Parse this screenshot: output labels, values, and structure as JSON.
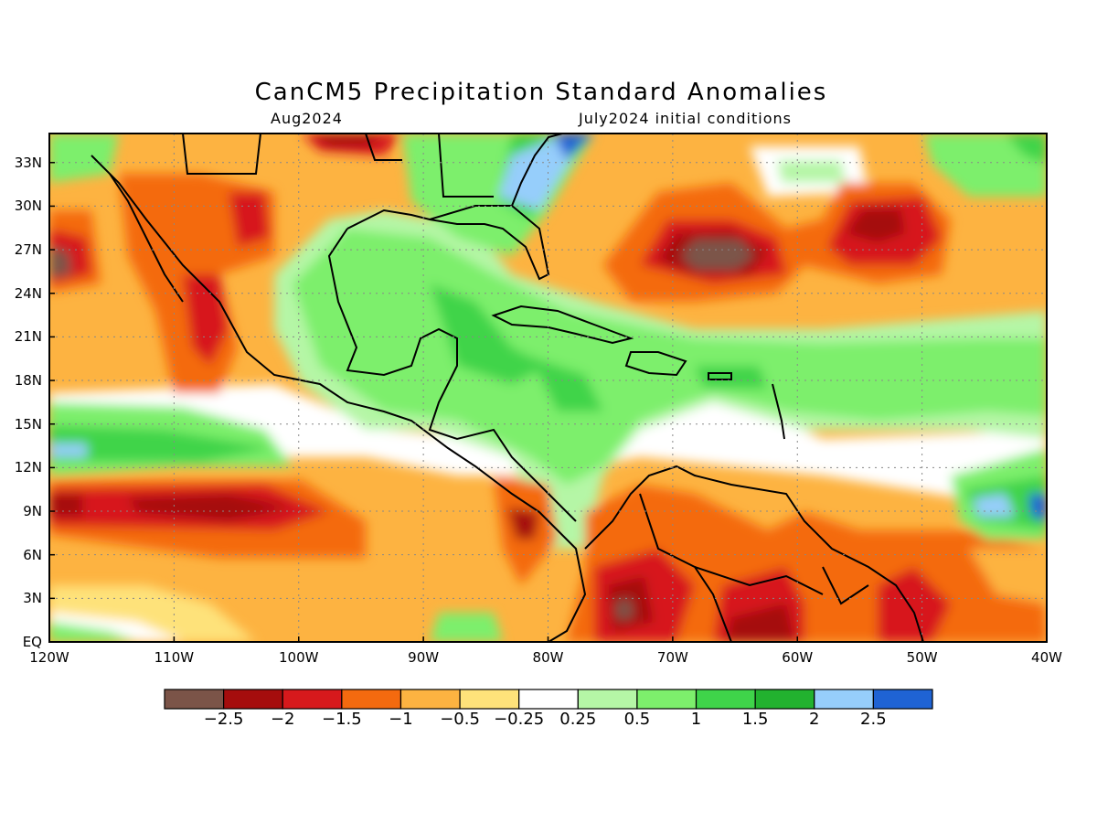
{
  "title": "CanCM5 Precipitation Standard Anomalies",
  "subtitle_left": "Aug2024",
  "subtitle_right": "July2024 initial conditions",
  "axes": {
    "lat_ticks": [
      "33N",
      "30N",
      "27N",
      "24N",
      "21N",
      "18N",
      "15N",
      "12N",
      "9N",
      "6N",
      "3N",
      "EQ"
    ],
    "lon_ticks": [
      "120W",
      "110W",
      "100W",
      "90W",
      "80W",
      "70W",
      "60W",
      "50W",
      "40W"
    ],
    "lat_range": [
      0,
      35
    ],
    "lon_range": [
      -120,
      -40
    ],
    "grid": "dotted"
  },
  "colorbar": {
    "labels": [
      "-2.5",
      "-2",
      "-1.5",
      "-1",
      "-0.5",
      "-0.25",
      "0.25",
      "0.5",
      "1",
      "1.5",
      "2",
      "2.5"
    ],
    "colors": [
      "#7b5448",
      "#a50d0d",
      "#d7191c",
      "#f46a0f",
      "#fdb341",
      "#fee27a",
      "#ffffff",
      "#b5f6a6",
      "#7def6c",
      "#3fd44a",
      "#22b22f",
      "#96cefb",
      "#1f63d4"
    ]
  },
  "colors": {
    "land_outline": "#000000"
  }
}
